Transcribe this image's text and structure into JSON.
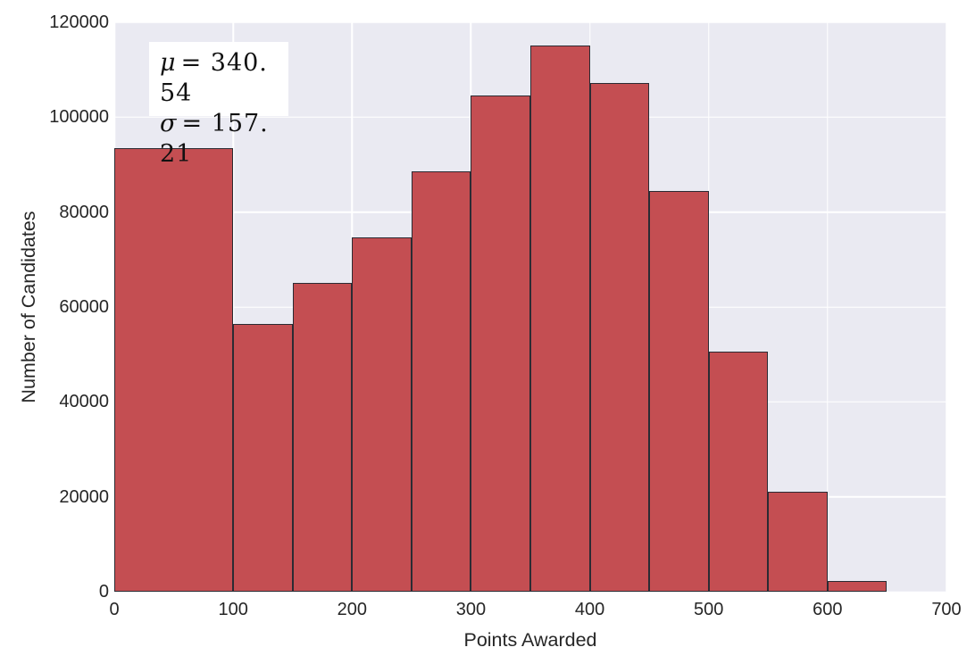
{
  "chart_data": {
    "type": "bar",
    "subtype": "histogram",
    "title": "",
    "xlabel": "Points Awarded",
    "ylabel": "Number of Candidates",
    "xlim": [
      0,
      700
    ],
    "ylim": [
      0,
      120000
    ],
    "x_ticks": [
      0,
      100,
      200,
      300,
      400,
      500,
      600,
      700
    ],
    "y_ticks": [
      0,
      20000,
      40000,
      60000,
      80000,
      100000,
      120000
    ],
    "grid": true,
    "legend": false,
    "bins": [
      {
        "start": 0,
        "end": 100,
        "count": 93500
      },
      {
        "start": 100,
        "end": 150,
        "count": 56400
      },
      {
        "start": 150,
        "end": 200,
        "count": 65000
      },
      {
        "start": 200,
        "end": 250,
        "count": 74700
      },
      {
        "start": 250,
        "end": 300,
        "count": 88600
      },
      {
        "start": 300,
        "end": 350,
        "count": 104600
      },
      {
        "start": 350,
        "end": 400,
        "count": 115200
      },
      {
        "start": 400,
        "end": 450,
        "count": 107200
      },
      {
        "start": 450,
        "end": 500,
        "count": 84500
      },
      {
        "start": 500,
        "end": 550,
        "count": 50600
      },
      {
        "start": 550,
        "end": 600,
        "count": 21100
      },
      {
        "start": 600,
        "end": 650,
        "count": 2200
      }
    ]
  },
  "annotation": {
    "mu_value": 340.54,
    "sigma_value": 157.21,
    "lines": [
      {
        "symbol": "μ",
        "rest": "= 340. 54"
      },
      {
        "symbol": "σ",
        "rest": "= 157. 21"
      }
    ]
  },
  "colors": {
    "plot_background": "#eaeaf2",
    "gridline": "#ffffff",
    "bar_fill": "#c44e52",
    "bar_edge": "#2b2b33",
    "text": "#262626",
    "annotation_background": "#ffffff"
  }
}
